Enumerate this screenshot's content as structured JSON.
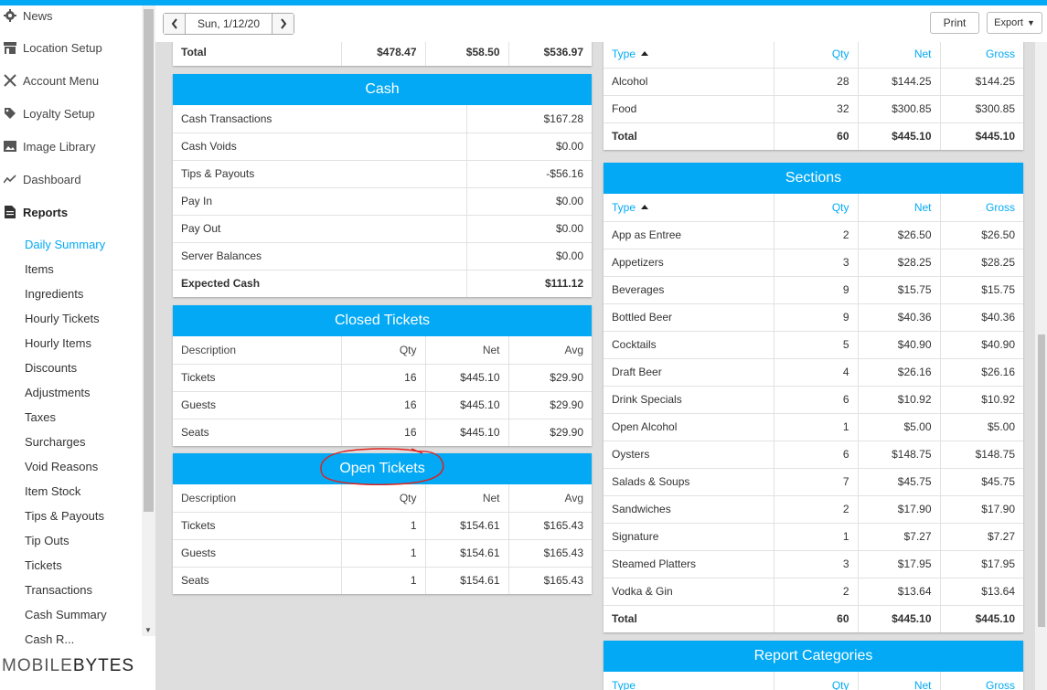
{
  "sidebar": {
    "nav": [
      {
        "label": "News",
        "icon": "gear-icon"
      },
      {
        "label": "Location Setup",
        "icon": "store-icon"
      },
      {
        "label": "Account Menu",
        "icon": "utensils-icon"
      },
      {
        "label": "Loyalty Setup",
        "icon": "tag-icon"
      },
      {
        "label": "Image Library",
        "icon": "image-icon"
      },
      {
        "label": "Dashboard",
        "icon": "chart-line-icon"
      },
      {
        "label": "Reports",
        "icon": "file-icon"
      }
    ],
    "report_items": [
      "Daily Summary",
      "Items",
      "Ingredients",
      "Hourly Tickets",
      "Hourly Items",
      "Discounts",
      "Adjustments",
      "Taxes",
      "Surcharges",
      "Void Reasons",
      "Item Stock",
      "Tips & Payouts",
      "Tip Outs",
      "Tickets",
      "Transactions",
      "Cash Summary",
      "Cash R..."
    ],
    "active_item": "Daily Summary",
    "brand_a": "MOBILE",
    "brand_b": "BYTES"
  },
  "toolbar": {
    "prev_label": "<",
    "next_label": ">",
    "date": "Sun, 1/12/20",
    "print_label": "Print",
    "export_label": "Export"
  },
  "colors": {
    "accent": "#03a9f4",
    "annotation": "#e0201c"
  },
  "top_total": {
    "label": "Total",
    "values": [
      "$478.47",
      "$58.50",
      "$536.97"
    ]
  },
  "cash": {
    "title": "Cash",
    "rows": [
      {
        "label": "Cash Transactions",
        "value": "$167.28"
      },
      {
        "label": "Cash Voids",
        "value": "$0.00"
      },
      {
        "label": "Tips & Payouts",
        "value": "-$56.16"
      },
      {
        "label": "Pay In",
        "value": "$0.00"
      },
      {
        "label": "Pay Out",
        "value": "$0.00"
      },
      {
        "label": "Server Balances",
        "value": "$0.00"
      },
      {
        "label": "Expected Cash",
        "value": "$111.12"
      }
    ]
  },
  "closed_tickets": {
    "title": "Closed Tickets",
    "columns": [
      "Description",
      "Qty",
      "Net",
      "Avg"
    ],
    "rows": [
      [
        "Tickets",
        "16",
        "$445.10",
        "$29.90"
      ],
      [
        "Guests",
        "16",
        "$445.10",
        "$29.90"
      ],
      [
        "Seats",
        "16",
        "$445.10",
        "$29.90"
      ]
    ]
  },
  "open_tickets": {
    "title": "Open Tickets",
    "columns": [
      "Description",
      "Qty",
      "Net",
      "Avg"
    ],
    "rows": [
      [
        "Tickets",
        "1",
        "$154.61",
        "$165.43"
      ],
      [
        "Guests",
        "1",
        "$154.61",
        "$165.43"
      ],
      [
        "Seats",
        "1",
        "$154.61",
        "$165.43"
      ]
    ]
  },
  "types": {
    "columns": [
      "Type",
      "Qty",
      "Net",
      "Gross"
    ],
    "rows": [
      [
        "Alcohol",
        "28",
        "$144.25",
        "$144.25"
      ],
      [
        "Food",
        "32",
        "$300.85",
        "$300.85"
      ]
    ],
    "total": [
      "Total",
      "60",
      "$445.10",
      "$445.10"
    ]
  },
  "sections": {
    "title": "Sections",
    "columns": [
      "Type",
      "Qty",
      "Net",
      "Gross"
    ],
    "rows": [
      [
        "App as Entree",
        "2",
        "$26.50",
        "$26.50"
      ],
      [
        "Appetizers",
        "3",
        "$28.25",
        "$28.25"
      ],
      [
        "Beverages",
        "9",
        "$15.75",
        "$15.75"
      ],
      [
        "Bottled Beer",
        "9",
        "$40.36",
        "$40.36"
      ],
      [
        "Cocktails",
        "5",
        "$40.90",
        "$40.90"
      ],
      [
        "Draft Beer",
        "4",
        "$26.16",
        "$26.16"
      ],
      [
        "Drink Specials",
        "6",
        "$10.92",
        "$10.92"
      ],
      [
        "Open Alcohol",
        "1",
        "$5.00",
        "$5.00"
      ],
      [
        "Oysters",
        "6",
        "$148.75",
        "$148.75"
      ],
      [
        "Salads & Soups",
        "7",
        "$45.75",
        "$45.75"
      ],
      [
        "Sandwiches",
        "2",
        "$17.90",
        "$17.90"
      ],
      [
        "Signature",
        "1",
        "$7.27",
        "$7.27"
      ],
      [
        "Steamed Platters",
        "3",
        "$17.95",
        "$17.95"
      ],
      [
        "Vodka & Gin",
        "2",
        "$13.64",
        "$13.64"
      ]
    ],
    "total": [
      "Total",
      "60",
      "$445.10",
      "$445.10"
    ]
  },
  "report_categories": {
    "title": "Report Categories",
    "columns": [
      "Type",
      "Qty",
      "Net",
      "Gross"
    ]
  }
}
